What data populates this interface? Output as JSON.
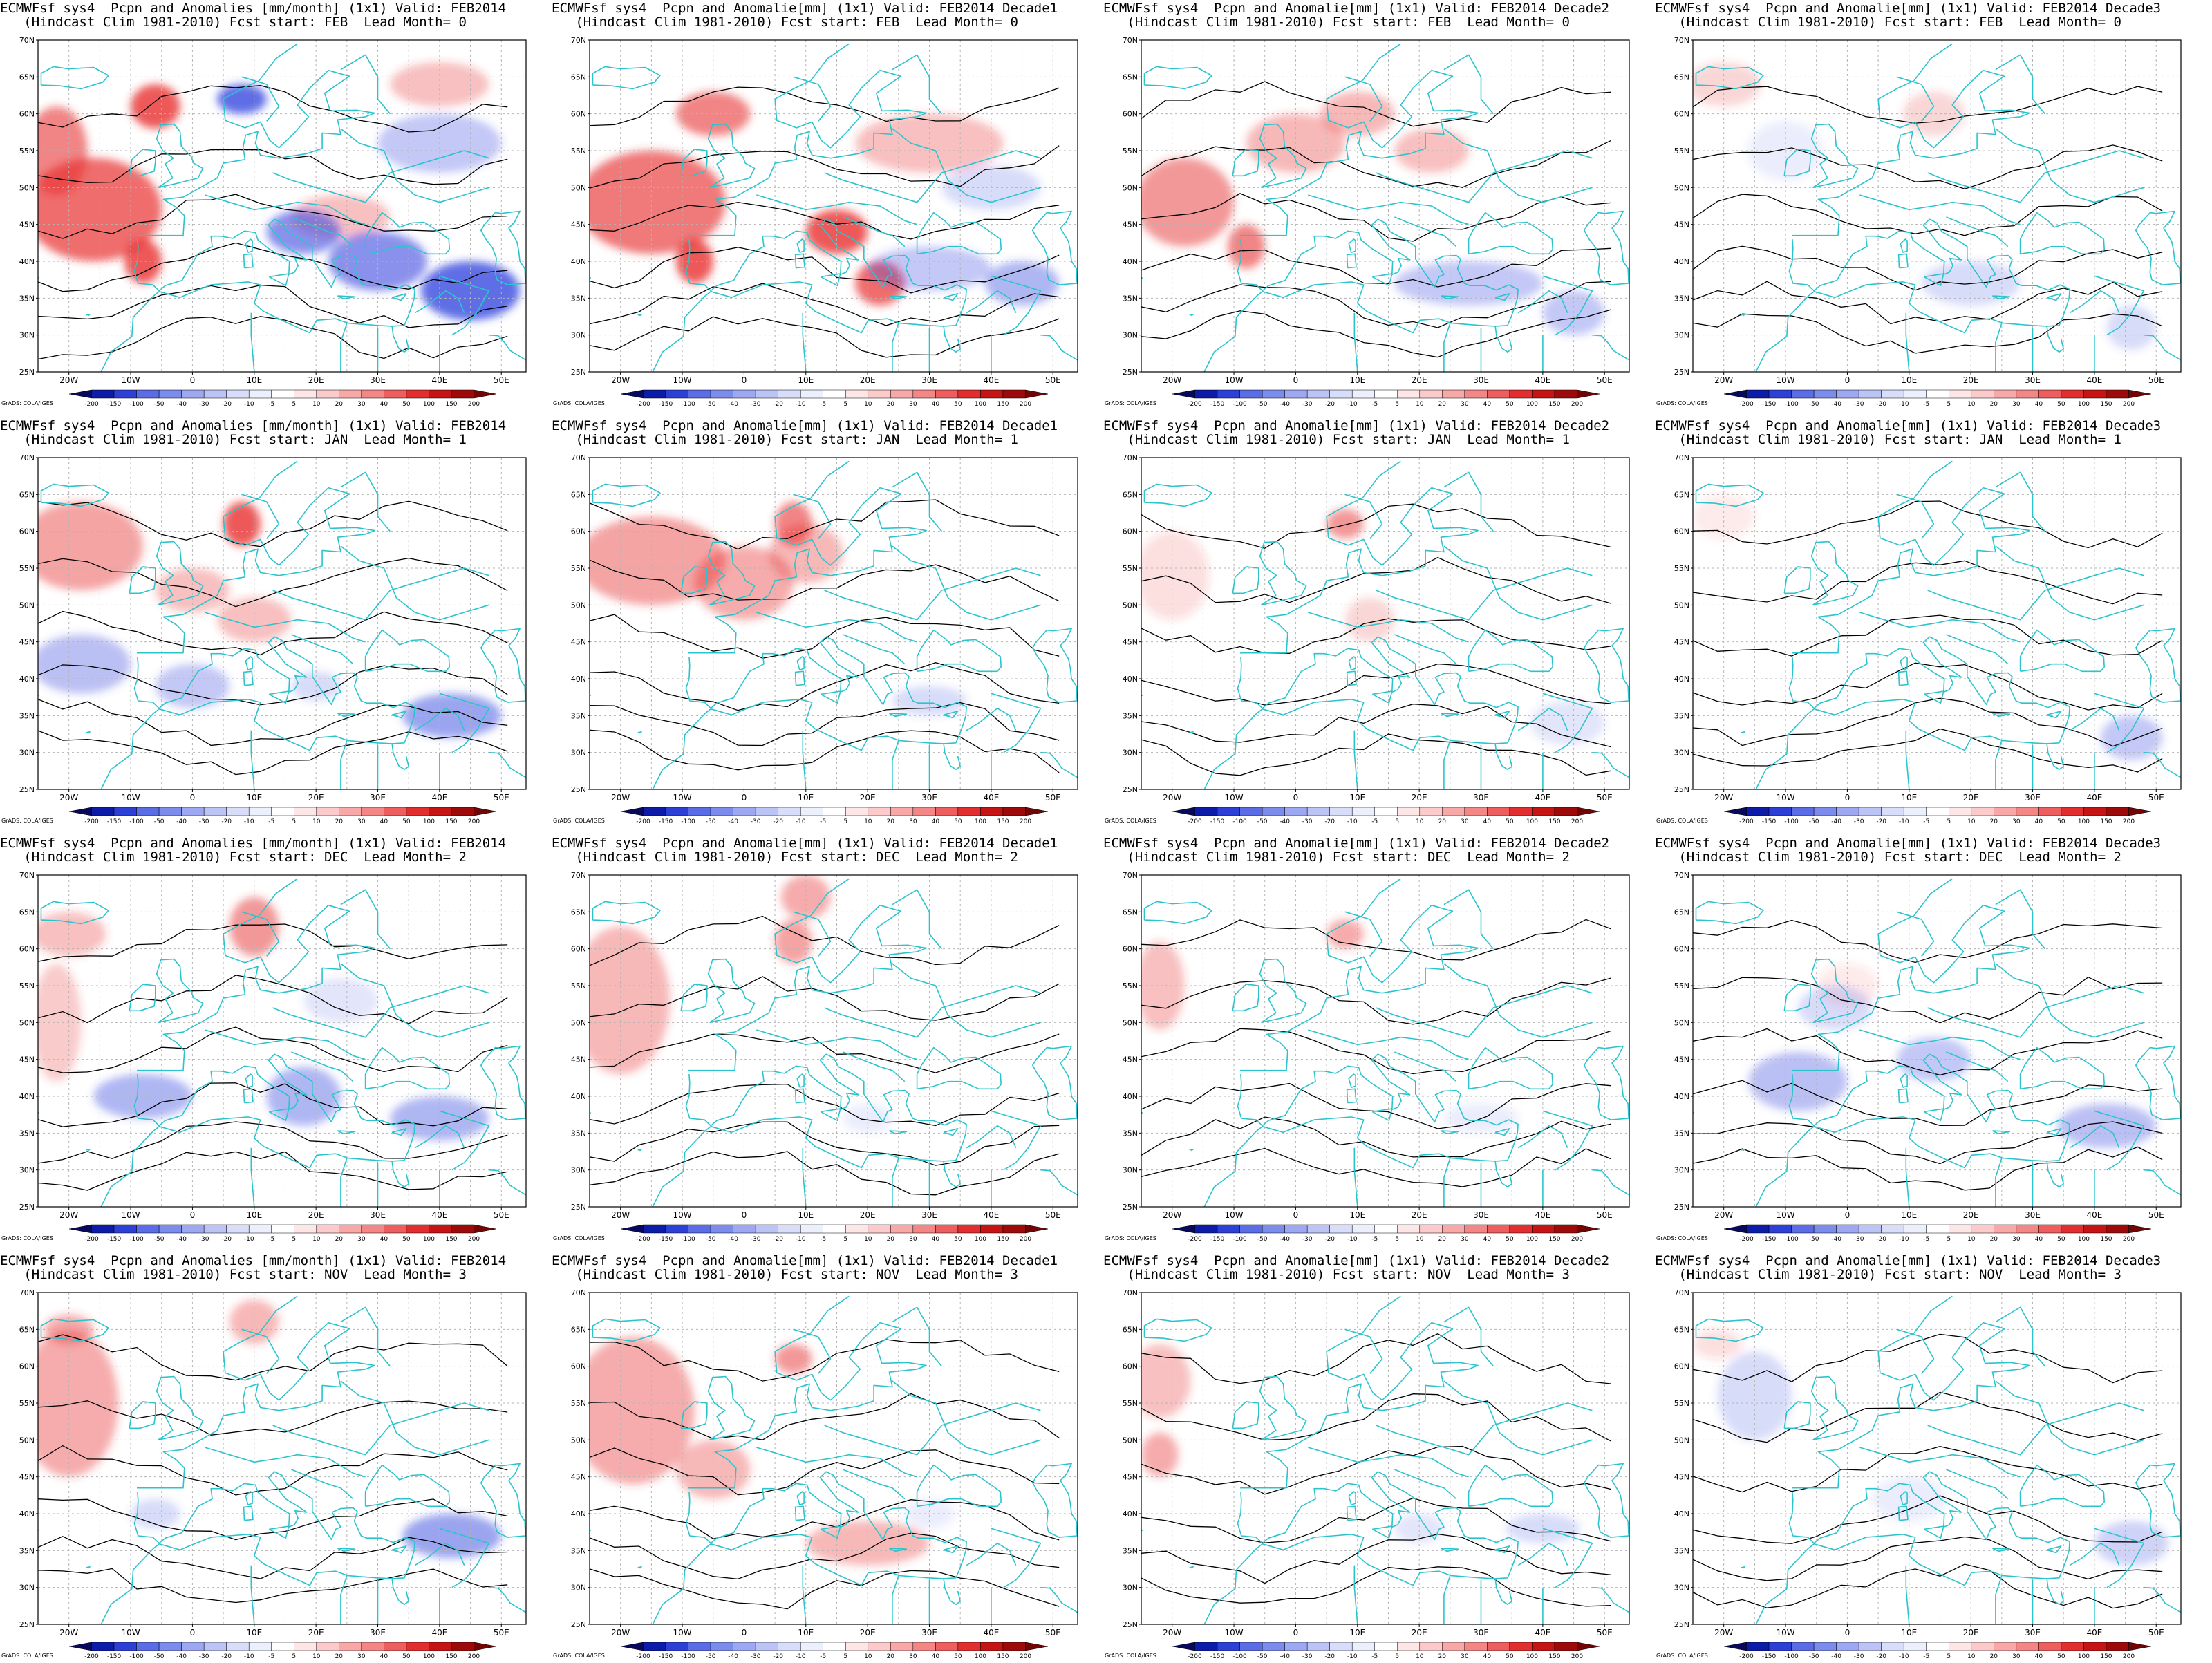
{
  "panels": [
    {
      "line1": "ECMWFsf sys4  Pcpn and Anomalies [mm/month] (1x1) Valid: FEB2014",
      "line2": "   (Hindcast Clim 1981-2010) Fcst start: FEB  Lead Month= 0"
    },
    {
      "line1": "ECMWFsf sys4  Pcpn and Anomalie[mm] (1x1) Valid: FEB2014 Decade1",
      "line2": "   (Hindcast Clim 1981-2010) Fcst start: FEB  Lead Month= 0"
    },
    {
      "line1": "ECMWFsf sys4  Pcpn and Anomalie[mm] (1x1) Valid: FEB2014 Decade2",
      "line2": "   (Hindcast Clim 1981-2010) Fcst start: FEB  Lead Month= 0"
    },
    {
      "line1": "ECMWFsf sys4  Pcpn and Anomalie[mm] (1x1) Valid: FEB2014 Decade3",
      "line2": "   (Hindcast Clim 1981-2010) Fcst start: FEB  Lead Month= 0"
    },
    {
      "line1": "ECMWFsf sys4  Pcpn and Anomalies [mm/month] (1x1) Valid: FEB2014",
      "line2": "   (Hindcast Clim 1981-2010) Fcst start: JAN  Lead Month= 1"
    },
    {
      "line1": "ECMWFsf sys4  Pcpn and Anomalie[mm] (1x1) Valid: FEB2014 Decade1",
      "line2": "   (Hindcast Clim 1981-2010) Fcst start: JAN  Lead Month= 1"
    },
    {
      "line1": "ECMWFsf sys4  Pcpn and Anomalie[mm] (1x1) Valid: FEB2014 Decade2",
      "line2": "   (Hindcast Clim 1981-2010) Fcst start: JAN  Lead Month= 1"
    },
    {
      "line1": "ECMWFsf sys4  Pcpn and Anomalie[mm] (1x1) Valid: FEB2014 Decade3",
      "line2": "   (Hindcast Clim 1981-2010) Fcst start: JAN  Lead Month= 1"
    },
    {
      "line1": "ECMWFsf sys4  Pcpn and Anomalies [mm/month] (1x1) Valid: FEB2014",
      "line2": "   (Hindcast Clim 1981-2010) Fcst start: DEC  Lead Month= 2"
    },
    {
      "line1": "ECMWFsf sys4  Pcpn and Anomalie[mm] (1x1) Valid: FEB2014 Decade1",
      "line2": "   (Hindcast Clim 1981-2010) Fcst start: DEC  Lead Month= 2"
    },
    {
      "line1": "ECMWFsf sys4  Pcpn and Anomalie[mm] (1x1) Valid: FEB2014 Decade2",
      "line2": "   (Hindcast Clim 1981-2010) Fcst start: DEC  Lead Month= 2"
    },
    {
      "line1": "ECMWFsf sys4  Pcpn and Anomalie[mm] (1x1) Valid: FEB2014 Decade3",
      "line2": "   (Hindcast Clim 1981-2010) Fcst start: DEC  Lead Month= 2"
    },
    {
      "line1": "ECMWFsf sys4  Pcpn and Anomalies [mm/month] (1x1) Valid: FEB2014",
      "line2": "   (Hindcast Clim 1981-2010) Fcst start: NOV  Lead Month= 3"
    },
    {
      "line1": "ECMWFsf sys4  Pcpn and Anomalie[mm] (1x1) Valid: FEB2014 Decade1",
      "line2": "   (Hindcast Clim 1981-2010) Fcst start: NOV  Lead Month= 3"
    },
    {
      "line1": "ECMWFsf sys4  Pcpn and Anomalie[mm] (1x1) Valid: FEB2014 Decade2",
      "line2": "   (Hindcast Clim 1981-2010) Fcst start: NOV  Lead Month= 3"
    },
    {
      "line1": "ECMWFsf sys4  Pcpn and Anomalie[mm] (1x1) Valid: FEB2014 Decade3",
      "line2": "   (Hindcast Clim 1981-2010) Fcst start: NOV  Lead Month= 3"
    }
  ],
  "lat_labels": [
    "70N",
    "65N",
    "60N",
    "55N",
    "50N",
    "45N",
    "40N",
    "35N",
    "30N",
    "25N"
  ],
  "lon_labels": [
    "20W",
    "10W",
    "0",
    "10E",
    "20E",
    "30E",
    "40E",
    "50E"
  ],
  "colorbar": {
    "levels": [
      "-200",
      "-150",
      "-100",
      "-50",
      "-40",
      "-30",
      "-20",
      "-10",
      "-5",
      "5",
      "10",
      "20",
      "30",
      "40",
      "50",
      "100",
      "150",
      "200"
    ],
    "colors": [
      "#08085c",
      "#0c1ca8",
      "#2c40d8",
      "#5a6ce6",
      "#7c8cec",
      "#9ea8f2",
      "#bcc4f6",
      "#d8ddfa",
      "#eceffc",
      "#ffffff",
      "#fde6e6",
      "#fccaca",
      "#f9a8a8",
      "#f48686",
      "#ee5e5e",
      "#e22e2e",
      "#c61414",
      "#9e0a0a",
      "#720404"
    ],
    "credit": "GrADS: COLA/IGES"
  },
  "colors": {
    "coast": "#2cc4cc",
    "grid": "#b4b4b4",
    "contour": "#000000"
  }
}
